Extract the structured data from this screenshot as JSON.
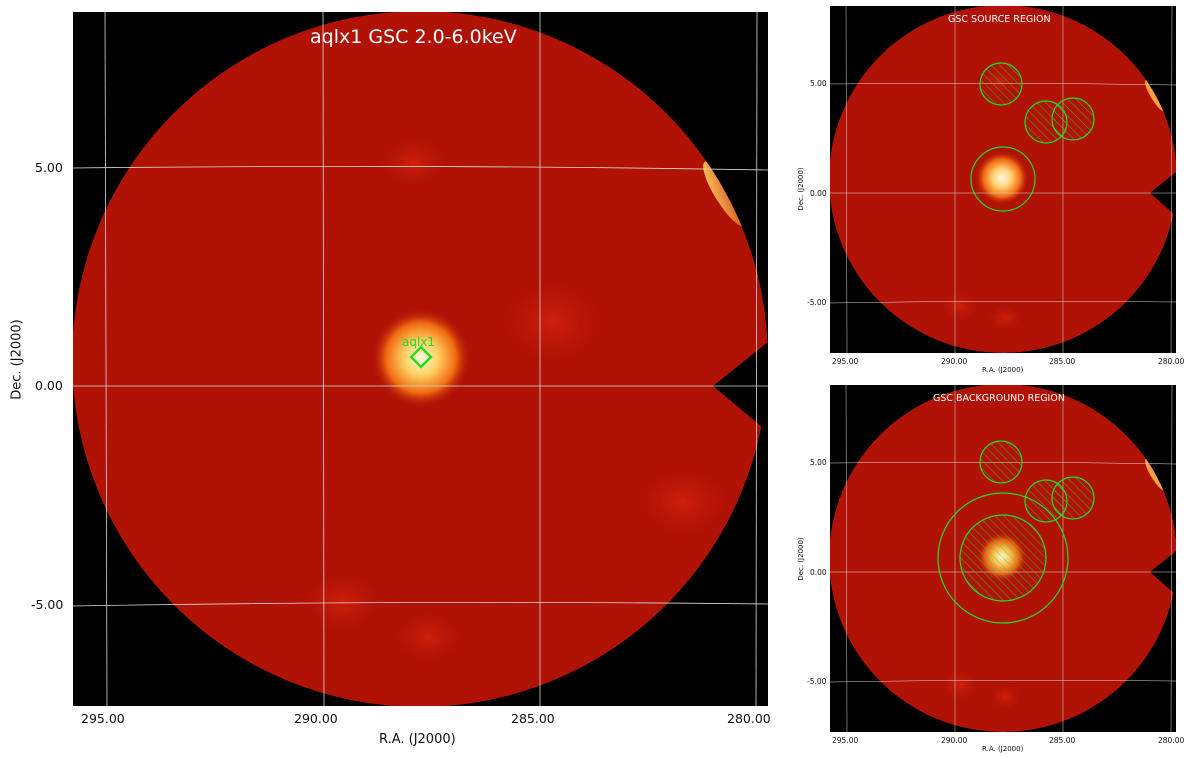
{
  "main": {
    "title": "aqlx1 GSC 2.0-6.0keV",
    "source_label": "aqlx1",
    "xlabel": "R.A. (J2000)",
    "ylabel": "Dec. (J2000)",
    "xticks": [
      "295.00",
      "290.00",
      "285.00",
      "280.00"
    ],
    "yticks": [
      "5.00",
      "0.00",
      "-5.00"
    ]
  },
  "source_region": {
    "title": "GSC SOURCE REGION",
    "xlabel": "R.A. (J2000)",
    "ylabel": "Dec. (J2000)",
    "xticks": [
      "295.00",
      "290.00",
      "285.00",
      "280.00"
    ],
    "yticks": [
      "5.00",
      "0.00",
      "-5.00"
    ]
  },
  "background_region": {
    "title": "GSC BACKGROUND REGION",
    "xlabel": "R.A. (J2000)",
    "ylabel": "Dec. (J2000)",
    "xticks": [
      "295.00",
      "290.00",
      "285.00",
      "280.00"
    ],
    "yticks": [
      "5.00",
      "0.00",
      "-5.00"
    ]
  },
  "colors": {
    "region_green": "#22dd22",
    "sky_red": "#b01206",
    "grid": "#d8d8d8"
  }
}
